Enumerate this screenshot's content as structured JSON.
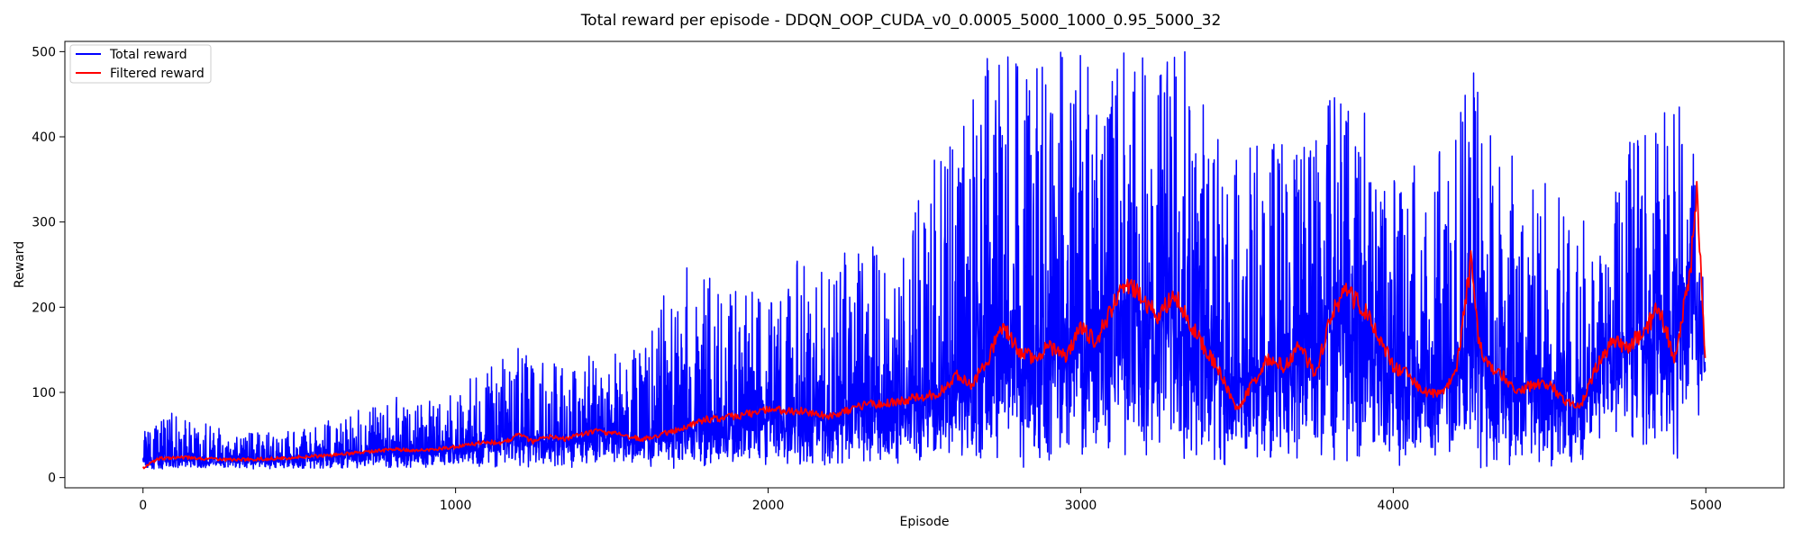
{
  "chart_data": {
    "type": "line",
    "title": "Total reward per episode - DDQN_OOP_CUDA_v0_0.0005_5000_1000_0.95_5000_32",
    "xlabel": "Episode",
    "ylabel": "Reward",
    "xlim": [
      -250,
      5250
    ],
    "ylim": [
      -12,
      512
    ],
    "x_ticks": [
      0,
      1000,
      2000,
      3000,
      4000,
      5000
    ],
    "y_ticks": [
      0,
      100,
      200,
      300,
      400,
      500
    ],
    "grid": false,
    "legend_position": "top-left",
    "series": [
      {
        "name": "Total reward",
        "color": "#0000ff",
        "style": "noisy-raw",
        "x": [
          0,
          100,
          200,
          300,
          400,
          500,
          600,
          700,
          800,
          900,
          1000,
          1100,
          1200,
          1300,
          1400,
          1500,
          1600,
          1700,
          1800,
          1900,
          2000,
          2100,
          2200,
          2300,
          2400,
          2500,
          2550,
          2600,
          2700,
          2750,
          2800,
          2900,
          3000,
          3100,
          3150,
          3200,
          3300,
          3400,
          3450,
          3500,
          3600,
          3700,
          3800,
          3850,
          3900,
          3950,
          4000,
          4100,
          4200,
          4250,
          4300,
          4400,
          4500,
          4600,
          4650,
          4700,
          4800,
          4900,
          4950,
          5000
        ],
        "values": [
          20,
          22,
          18,
          20,
          19,
          22,
          25,
          28,
          30,
          28,
          32,
          38,
          48,
          42,
          46,
          50,
          44,
          50,
          60,
          58,
          70,
          68,
          75,
          80,
          78,
          85,
          95,
          100,
          120,
          160,
          145,
          150,
          160,
          175,
          200,
          190,
          180,
          160,
          130,
          110,
          130,
          140,
          170,
          190,
          180,
          140,
          110,
          100,
          120,
          200,
          130,
          110,
          105,
          90,
          130,
          150,
          160,
          170,
          250,
          120
        ],
        "max_values": [
          55,
          80,
          65,
          50,
          55,
          55,
          70,
          80,
          95,
          90,
          105,
          130,
          155,
          140,
          150,
          155,
          150,
          250,
          240,
          220,
          220,
          280,
          260,
          290,
          240,
          360,
          400,
          440,
          500,
          500,
          500,
          500,
          500,
          500,
          500,
          500,
          500,
          500,
          370,
          380,
          420,
          400,
          500,
          500,
          500,
          330,
          360,
          380,
          400,
          500,
          430,
          380,
          340,
          340,
          260,
          360,
          420,
          440,
          500,
          170
        ],
        "min_values": [
          10,
          10,
          10,
          10,
          10,
          10,
          10,
          10,
          10,
          10,
          10,
          10,
          10,
          10,
          10,
          10,
          10,
          10,
          10,
          10,
          10,
          10,
          10,
          10,
          10,
          10,
          10,
          10,
          10,
          10,
          10,
          10,
          10,
          10,
          10,
          10,
          10,
          10,
          10,
          10,
          10,
          10,
          10,
          10,
          10,
          10,
          10,
          10,
          10,
          10,
          10,
          10,
          10,
          10,
          40,
          50,
          30,
          20,
          30,
          100
        ]
      },
      {
        "name": "Filtered reward",
        "color": "#ff0000",
        "style": "smoothed",
        "x": [
          0,
          50,
          100,
          200,
          300,
          400,
          500,
          600,
          700,
          800,
          900,
          1000,
          1100,
          1150,
          1200,
          1250,
          1300,
          1350,
          1400,
          1450,
          1500,
          1550,
          1600,
          1700,
          1800,
          1900,
          2000,
          2100,
          2200,
          2300,
          2400,
          2500,
          2550,
          2600,
          2650,
          2700,
          2750,
          2800,
          2850,
          2900,
          2950,
          3000,
          3050,
          3100,
          3150,
          3200,
          3250,
          3300,
          3350,
          3400,
          3450,
          3500,
          3550,
          3600,
          3650,
          3700,
          3750,
          3800,
          3850,
          3900,
          3950,
          4000,
          4050,
          4100,
          4150,
          4200,
          4250,
          4270,
          4300,
          4350,
          4400,
          4450,
          4500,
          4550,
          4600,
          4650,
          4700,
          4750,
          4800,
          4850,
          4900,
          4950,
          4970,
          5000
        ],
        "values": [
          12,
          22,
          24,
          22,
          21,
          22,
          24,
          26,
          30,
          33,
          32,
          36,
          42,
          40,
          50,
          42,
          48,
          45,
          50,
          55,
          52,
          48,
          45,
          55,
          68,
          72,
          80,
          78,
          72,
          85,
          88,
          95,
          100,
          120,
          110,
          135,
          180,
          150,
          140,
          155,
          140,
          175,
          160,
          200,
          230,
          210,
          190,
          220,
          180,
          150,
          120,
          80,
          110,
          140,
          130,
          155,
          120,
          190,
          220,
          200,
          170,
          130,
          120,
          100,
          100,
          120,
          260,
          170,
          130,
          120,
          100,
          110,
          110,
          90,
          85,
          130,
          160,
          155,
          170,
          200,
          140,
          240,
          340,
          130
        ]
      }
    ]
  }
}
